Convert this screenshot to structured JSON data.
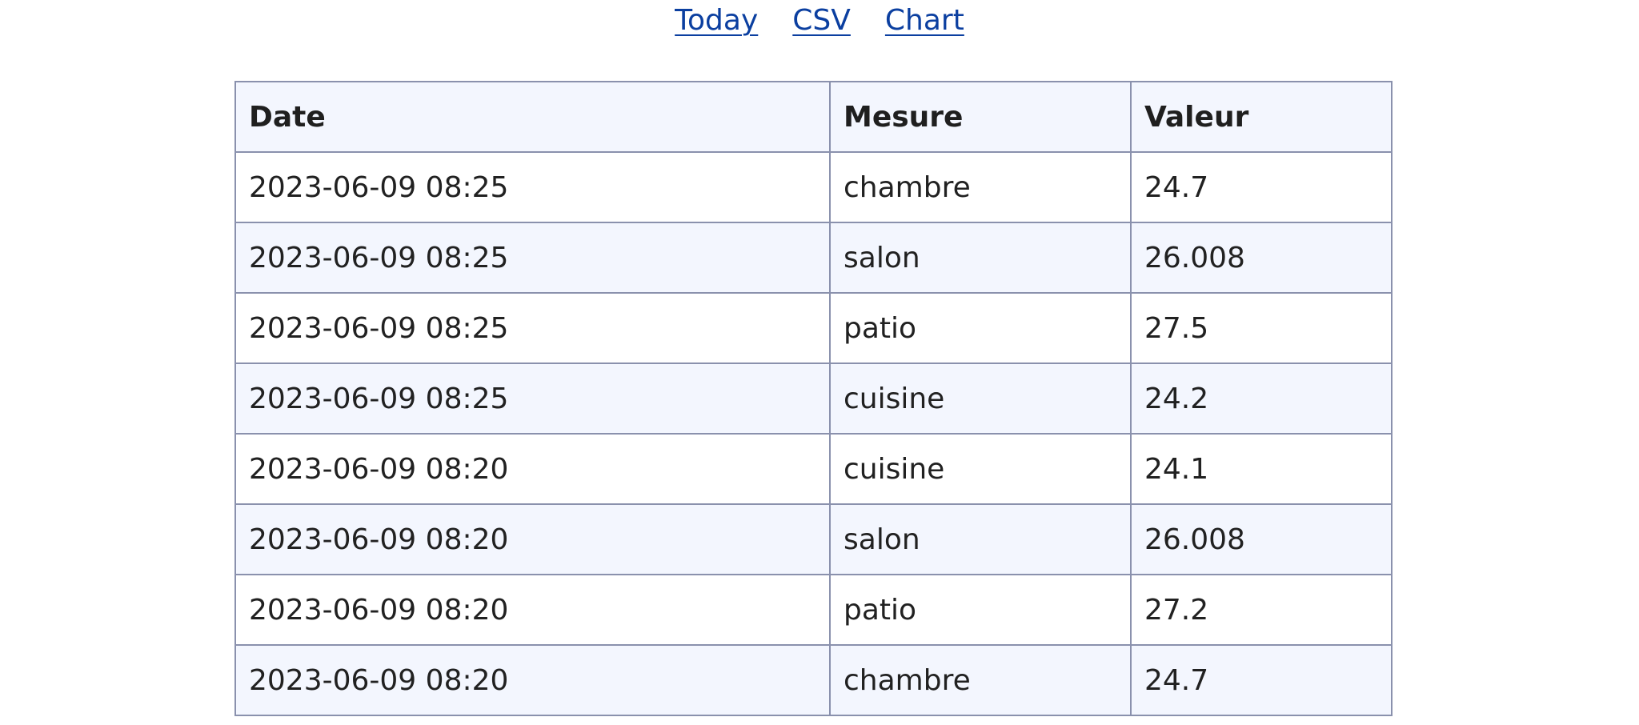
{
  "nav": {
    "links": [
      {
        "label": "Today"
      },
      {
        "label": "CSV"
      },
      {
        "label": "Chart"
      }
    ]
  },
  "table": {
    "headers": {
      "date": "Date",
      "mesure": "Mesure",
      "valeur": "Valeur"
    },
    "rows": [
      {
        "date": "2023-06-09 08:25",
        "mesure": "chambre",
        "valeur": "24.7"
      },
      {
        "date": "2023-06-09 08:25",
        "mesure": "salon",
        "valeur": "26.008"
      },
      {
        "date": "2023-06-09 08:25",
        "mesure": "patio",
        "valeur": "27.5"
      },
      {
        "date": "2023-06-09 08:25",
        "mesure": "cuisine",
        "valeur": "24.2"
      },
      {
        "date": "2023-06-09 08:20",
        "mesure": "cuisine",
        "valeur": "24.1"
      },
      {
        "date": "2023-06-09 08:20",
        "mesure": "salon",
        "valeur": "26.008"
      },
      {
        "date": "2023-06-09 08:20",
        "mesure": "patio",
        "valeur": "27.2"
      },
      {
        "date": "2023-06-09 08:20",
        "mesure": "chambre",
        "valeur": "24.7"
      }
    ]
  },
  "colors": {
    "link": "#0b3fa0",
    "header_bg": "#f3f6fe",
    "stripe_bg": "#f3f6fe",
    "border": "#8a91ad"
  }
}
